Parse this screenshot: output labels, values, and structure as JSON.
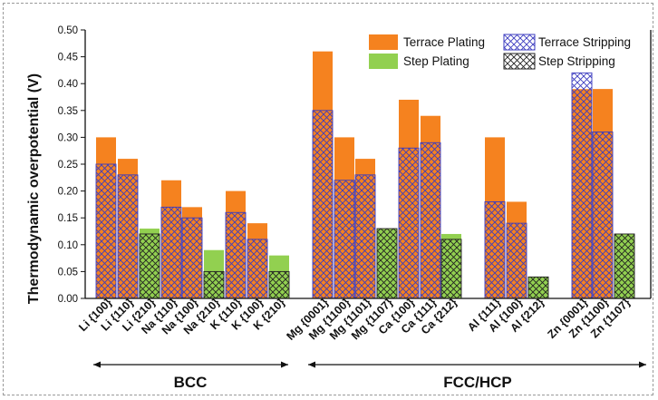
{
  "chart_data": {
    "type": "bar",
    "ylabel": "Thermodynamic overpotential (V)",
    "ylim": [
      0,
      0.5
    ],
    "yticks": [
      "0.00",
      "0.05",
      "0.10",
      "0.15",
      "0.20",
      "0.25",
      "0.30",
      "0.35",
      "0.40",
      "0.45",
      "0.50"
    ],
    "categories": [
      "Li {100}",
      "Li {110}",
      "Li {210}",
      "Na {110}",
      "Na {100}",
      "Na {210}",
      "K {110}",
      "K {100}",
      "K {210}",
      "Mg {0001}",
      "Mg {1100}",
      "Mg {1101}",
      "Mg {1107}",
      "Ca {100}",
      "Ca {111}",
      "Ca {212}",
      "Al {111}",
      "Al {100}",
      "Al {212}",
      "Zn {0001}",
      "Zn {1100}",
      "Zn {1107}"
    ],
    "series": [
      {
        "name": "Terrace Plating",
        "color": "#f5821f",
        "values": [
          0.3,
          0.26,
          null,
          0.22,
          0.17,
          null,
          0.2,
          0.14,
          null,
          0.46,
          0.3,
          0.26,
          null,
          0.37,
          0.34,
          null,
          0.3,
          0.18,
          null,
          0.39,
          0.39,
          null
        ]
      },
      {
        "name": "Terrace Stripping",
        "color": "#3b3bbf",
        "values": [
          0.25,
          0.23,
          null,
          0.17,
          0.15,
          null,
          0.16,
          0.11,
          null,
          0.35,
          0.22,
          0.23,
          null,
          0.28,
          0.29,
          null,
          0.18,
          0.14,
          null,
          0.42,
          0.31,
          null
        ]
      },
      {
        "name": "Step Plating",
        "color": "#92d050",
        "values": [
          null,
          null,
          0.13,
          null,
          null,
          0.09,
          null,
          null,
          0.08,
          null,
          null,
          null,
          0.13,
          null,
          null,
          0.12,
          null,
          null,
          0.04,
          null,
          null,
          0.12
        ]
      },
      {
        "name": "Step Stripping",
        "color": "#222222",
        "values": [
          null,
          null,
          0.12,
          null,
          null,
          0.05,
          null,
          null,
          0.05,
          null,
          null,
          null,
          0.13,
          null,
          null,
          0.11,
          null,
          null,
          0.04,
          null,
          null,
          0.12
        ]
      }
    ],
    "groups": [
      {
        "label": "BCC",
        "members": [
          "Li {100}",
          "K {210}"
        ]
      },
      {
        "label": "FCC/HCP",
        "members": [
          "Mg {0001}",
          "Zn {1107}"
        ]
      }
    ],
    "legend_position": "top-right",
    "grid": false
  }
}
